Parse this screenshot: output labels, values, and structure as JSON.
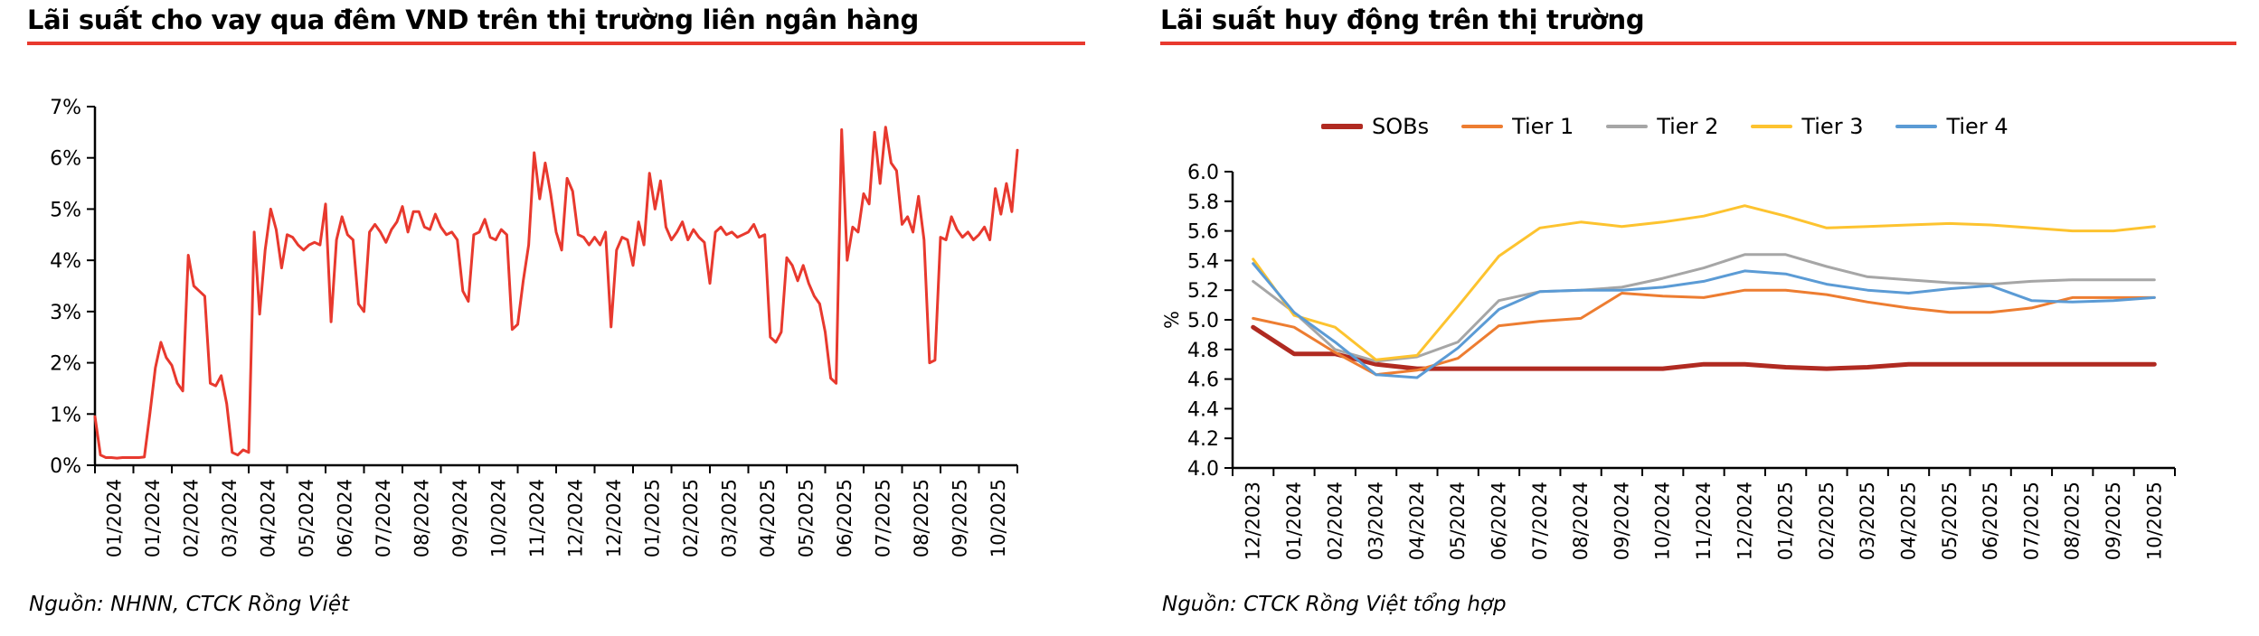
{
  "chart_data": [
    {
      "type": "line",
      "title": "Lãi suất cho vay qua đêm VND trên thị trường liên ngân hàng",
      "source": "Nguồn: NHNN, CTCK Rồng Việt",
      "accent_color": "#E8392E",
      "ylim": [
        0,
        7
      ],
      "yticks": [
        {
          "v": 0,
          "label": "0%"
        },
        {
          "v": 1,
          "label": "1%"
        },
        {
          "v": 2,
          "label": "2%"
        },
        {
          "v": 3,
          "label": "3%"
        },
        {
          "v": 4,
          "label": "4%"
        },
        {
          "v": 5,
          "label": "5%"
        },
        {
          "v": 6,
          "label": "6%"
        },
        {
          "v": 7,
          "label": "7%"
        }
      ],
      "x_tick_labels": [
        "01/2024",
        "01/2024",
        "02/2024",
        "03/2024",
        "04/2024",
        "05/2024",
        "06/2024",
        "07/2024",
        "08/2024",
        "09/2024",
        "10/2024",
        "11/2024",
        "12/2024",
        "12/2024",
        "01/2025",
        "02/2025",
        "03/2025",
        "04/2025",
        "05/2025",
        "06/2025",
        "07/2025",
        "08/2025",
        "09/2025",
        "10/2025"
      ],
      "centered": false,
      "legend": false,
      "series": [
        {
          "name": "Lãi suất cho vay qua đêm VND",
          "color": "#E8392E",
          "width": 3,
          "values": [
            0.95,
            0.2,
            0.15,
            0.15,
            0.14,
            0.15,
            0.15,
            0.15,
            0.15,
            0.16,
            1.0,
            1.9,
            2.4,
            2.1,
            1.95,
            1.6,
            1.45,
            4.1,
            3.5,
            3.4,
            3.3,
            1.6,
            1.55,
            1.75,
            1.2,
            0.25,
            0.2,
            0.3,
            0.25,
            4.55,
            2.95,
            4.2,
            5.0,
            4.6,
            3.85,
            4.5,
            4.45,
            4.3,
            4.2,
            4.3,
            4.35,
            4.3,
            5.1,
            2.8,
            4.4,
            4.85,
            4.5,
            4.4,
            3.15,
            3.0,
            4.55,
            4.7,
            4.55,
            4.35,
            4.6,
            4.75,
            5.05,
            4.55,
            4.95,
            4.95,
            4.65,
            4.6,
            4.9,
            4.65,
            4.5,
            4.55,
            4.4,
            3.4,
            3.2,
            4.5,
            4.55,
            4.8,
            4.45,
            4.4,
            4.6,
            4.5,
            2.65,
            2.75,
            3.6,
            4.3,
            6.1,
            5.2,
            5.9,
            5.3,
            4.55,
            4.2,
            5.6,
            5.35,
            4.5,
            4.45,
            4.3,
            4.45,
            4.3,
            4.55,
            2.7,
            4.2,
            4.45,
            4.4,
            3.9,
            4.75,
            4.3,
            5.7,
            5.0,
            5.55,
            4.65,
            4.4,
            4.55,
            4.75,
            4.4,
            4.6,
            4.45,
            4.35,
            3.55,
            4.55,
            4.65,
            4.5,
            4.55,
            4.45,
            4.5,
            4.55,
            4.7,
            4.45,
            4.5,
            2.5,
            2.4,
            2.6,
            4.05,
            3.9,
            3.6,
            3.9,
            3.55,
            3.3,
            3.15,
            2.6,
            1.7,
            1.6,
            6.55,
            4.0,
            4.65,
            4.55,
            5.3,
            5.1,
            6.5,
            5.5,
            6.6,
            5.9,
            5.75,
            4.7,
            4.85,
            4.55,
            5.25,
            4.4,
            2.0,
            2.05,
            4.45,
            4.4,
            4.85,
            4.6,
            4.45,
            4.55,
            4.4,
            4.5,
            4.65,
            4.4,
            5.4,
            4.9,
            5.5,
            4.95,
            6.15
          ]
        }
      ]
    },
    {
      "type": "line",
      "title": "Lãi suất huy động trên thị trường",
      "source": "Nguồn: CTCK Rồng Việt tổng hợp",
      "accent_color": "#E8392E",
      "ylabel": "%",
      "ylim": [
        4.0,
        6.0
      ],
      "yticks": [
        {
          "v": 4.0,
          "label": "4.0"
        },
        {
          "v": 4.2,
          "label": "4.2"
        },
        {
          "v": 4.4,
          "label": "4.4"
        },
        {
          "v": 4.6,
          "label": "4.6"
        },
        {
          "v": 4.8,
          "label": "4.8"
        },
        {
          "v": 5.0,
          "label": "5.0"
        },
        {
          "v": 5.2,
          "label": "5.2"
        },
        {
          "v": 5.4,
          "label": "5.4"
        },
        {
          "v": 5.6,
          "label": "5.6"
        },
        {
          "v": 5.8,
          "label": "5.8"
        },
        {
          "v": 6.0,
          "label": "6.0"
        }
      ],
      "x_tick_labels": [
        "12/2023",
        "01/2024",
        "02/2024",
        "03/2024",
        "04/2024",
        "05/2024",
        "06/2024",
        "07/2024",
        "08/2024",
        "09/2024",
        "10/2024",
        "11/2024",
        "12/2024",
        "01/2025",
        "02/2025",
        "03/2025",
        "04/2025",
        "05/2025",
        "06/2025",
        "07/2025",
        "08/2025",
        "09/2025",
        "10/2025"
      ],
      "centered": true,
      "legend_position": "top",
      "series": [
        {
          "name": "SOBs",
          "color": "#B02A21",
          "width": 5,
          "values": [
            4.95,
            4.77,
            4.77,
            4.7,
            4.67,
            4.67,
            4.67,
            4.67,
            4.67,
            4.67,
            4.67,
            4.7,
            4.7,
            4.68,
            4.67,
            4.68,
            4.7,
            4.7,
            4.7,
            4.7,
            4.7,
            4.7,
            4.7
          ]
        },
        {
          "name": "Tier 1",
          "color": "#ED7D31",
          "width": 3,
          "values": [
            5.01,
            4.95,
            4.78,
            4.63,
            4.66,
            4.74,
            4.96,
            4.99,
            5.01,
            5.18,
            5.16,
            5.15,
            5.2,
            5.2,
            5.17,
            5.12,
            5.08,
            5.05,
            5.05,
            5.08,
            5.15,
            5.15,
            5.15
          ]
        },
        {
          "name": "Tier 2",
          "color": "#A6A6A6",
          "width": 3,
          "values": [
            5.26,
            5.05,
            4.8,
            4.72,
            4.75,
            4.85,
            5.13,
            5.19,
            5.2,
            5.22,
            5.28,
            5.35,
            5.44,
            5.44,
            5.36,
            5.29,
            5.27,
            5.25,
            5.24,
            5.26,
            5.27,
            5.27,
            5.27
          ]
        },
        {
          "name": "Tier 3",
          "color": "#FDC32F",
          "width": 3,
          "values": [
            5.41,
            5.03,
            4.95,
            4.73,
            4.76,
            5.09,
            5.43,
            5.62,
            5.66,
            5.63,
            5.66,
            5.7,
            5.77,
            5.7,
            5.62,
            5.63,
            5.64,
            5.65,
            5.64,
            5.62,
            5.6,
            5.6,
            5.63
          ]
        },
        {
          "name": "Tier 4",
          "color": "#5B9BD5",
          "width": 3,
          "values": [
            5.38,
            5.05,
            4.85,
            4.63,
            4.61,
            4.81,
            5.07,
            5.19,
            5.2,
            5.2,
            5.22,
            5.26,
            5.33,
            5.31,
            5.24,
            5.2,
            5.18,
            5.21,
            5.23,
            5.13,
            5.12,
            5.13,
            5.15
          ]
        }
      ]
    }
  ]
}
